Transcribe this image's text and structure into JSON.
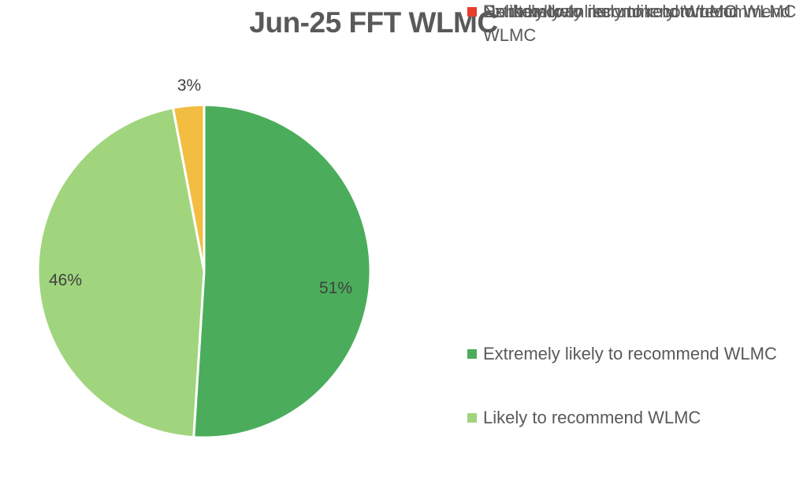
{
  "title": "Jun-25 FFT WLMC",
  "chart_data": {
    "type": "pie",
    "title": "Jun-25 FFT WLMC",
    "start_angle_deg": 0,
    "direction": "clockwise",
    "legend_position": "right",
    "unit": "%",
    "categories": [
      "Extremely likely to recommend WLMC",
      "Likely to recommend WLMC",
      "Neither likely nor unlikely to recommend WLMC",
      "Don't know",
      "Unlikely to to recommend WLMC",
      "Extremely unlikely to recommend WLMC"
    ],
    "values": [
      51,
      46,
      0,
      0,
      3,
      0
    ],
    "colors": [
      "#4BAD5B",
      "#A0D57E",
      "#FAF54D",
      "#4AA1D8",
      "#F3BD42",
      "#E93C2B"
    ],
    "data_labels": [
      "51%",
      "46%",
      "",
      "",
      "3%",
      ""
    ],
    "slice_border_color": "#ffffff"
  },
  "legend": {
    "items": [
      {
        "label": "Extremely likely to recommend WLMC",
        "color": "#4BAD5B"
      },
      {
        "label": "Likely to recommend WLMC",
        "color": "#A0D57E"
      },
      {
        "label": "Neither likely nor unlikely to recommend WLMC",
        "color": "#FAF54D"
      },
      {
        "label": "Don't know",
        "color": "#4AA1D8"
      },
      {
        "label": "Unlikely to to recommend WLMC",
        "color": "#F3BD42"
      },
      {
        "label": "Extremely unlikely to recommend WLMC",
        "color": "#E93C2B"
      }
    ]
  },
  "styles": {
    "title_color": "#595959",
    "legend_text_color": "#595959",
    "data_label_color": "#404040",
    "background": "#ffffff"
  }
}
